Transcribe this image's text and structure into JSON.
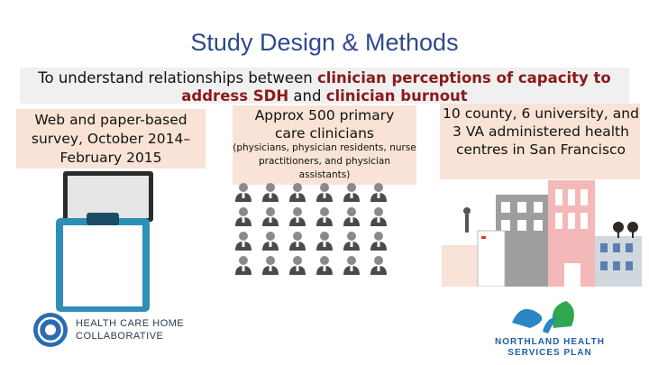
{
  "slide": {
    "title": "Study Design & Methods",
    "objective": {
      "part1": "To understand relationships between ",
      "highlight1": "clinician perceptions of capacity to address SDH",
      "part2": " and ",
      "highlight2": "clinician burnout"
    },
    "columns": [
      {
        "text": "Web and paper-based survey, October 2014–February 2015"
      },
      {
        "heading": "Approx 500 primary care clinicians",
        "subtext": "(physicians, physician residents, nurse practitioners, and physician assistants)"
      },
      {
        "text": "10 county, 6 university, and 3 VA administered health centres in San Francisco"
      }
    ],
    "logos": {
      "left": {
        "line1": "HEALTH CARE HOME",
        "line2": "COLLABORATIVE"
      },
      "right": {
        "line1": "NORTHLAND HEALTH",
        "line2": "SERVICES PLAN"
      }
    }
  },
  "colors": {
    "title": "#2e4a8c",
    "highlight": "#8b1a1a",
    "band": "#f9e3d6",
    "objective_bg": "#f0f0f0"
  },
  "icons": [
    "laptop-icon",
    "clipboard-icon",
    "person-icon",
    "hospital-icon"
  ]
}
